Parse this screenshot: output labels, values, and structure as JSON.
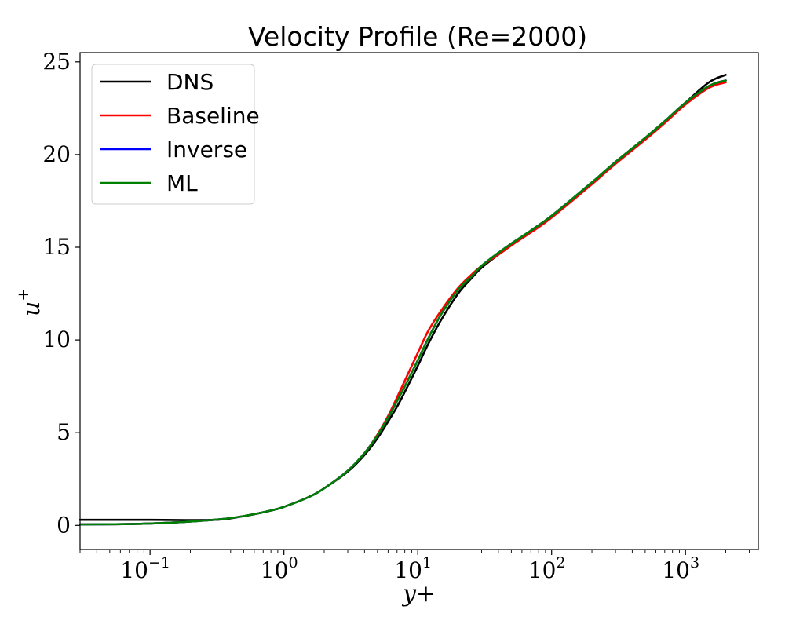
{
  "chart_data": {
    "type": "line",
    "title": "Velocity Profile (Re=2000)",
    "xlabel": "y+",
    "ylabel": "u",
    "ylabel_superscript": "+",
    "x_scale": "log",
    "xlim": [
      0.03,
      3500
    ],
    "ylim": [
      -1.3,
      25.5
    ],
    "x_ticks": [
      {
        "value": 0.1,
        "base": "10",
        "exp": "−1"
      },
      {
        "value": 1,
        "base": "10",
        "exp": "0"
      },
      {
        "value": 10,
        "base": "10",
        "exp": "1"
      },
      {
        "value": 100,
        "base": "10",
        "exp": "2"
      },
      {
        "value": 1000,
        "base": "10",
        "exp": "3"
      }
    ],
    "y_ticks": [
      0,
      5,
      10,
      15,
      20,
      25
    ],
    "grid": false,
    "legend_position": "top-left",
    "series": [
      {
        "name": "DNS",
        "color": "#000000",
        "x": [
          0.03,
          0.1,
          0.3,
          0.5,
          0.8,
          1,
          1.5,
          2,
          3,
          4,
          5,
          6,
          7,
          8,
          10,
          12,
          15,
          20,
          25,
          30,
          40,
          50,
          70,
          100,
          200,
          300,
          500,
          700,
          1000,
          1500,
          2000
        ],
        "y": [
          0.3,
          0.3,
          0.3,
          0.5,
          0.8,
          1.0,
          1.5,
          2.0,
          2.9,
          3.8,
          4.7,
          5.6,
          6.4,
          7.2,
          8.6,
          9.8,
          11.1,
          12.5,
          13.3,
          13.9,
          14.6,
          15.1,
          15.9,
          16.7,
          18.5,
          19.6,
          20.9,
          21.8,
          22.8,
          23.9,
          24.3
        ]
      },
      {
        "name": "Baseline",
        "color": "#ff0000",
        "x": [
          0.03,
          0.1,
          0.3,
          0.5,
          0.8,
          1,
          1.5,
          2,
          3,
          4,
          5,
          6,
          7,
          8,
          10,
          12,
          15,
          20,
          25,
          30,
          40,
          50,
          70,
          100,
          200,
          300,
          500,
          700,
          1000,
          1500,
          2000
        ],
        "y": [
          0.05,
          0.1,
          0.3,
          0.5,
          0.8,
          1.0,
          1.5,
          2.0,
          2.95,
          3.9,
          4.9,
          5.9,
          6.9,
          7.8,
          9.3,
          10.5,
          11.6,
          12.8,
          13.5,
          14.0,
          14.6,
          15.1,
          15.8,
          16.6,
          18.4,
          19.5,
          20.8,
          21.7,
          22.7,
          23.6,
          23.9
        ]
      },
      {
        "name": "Inverse",
        "color": "#0000ff",
        "x": [
          0.03,
          0.1,
          0.3,
          0.5,
          0.8,
          1,
          1.5,
          2,
          3,
          4,
          5,
          6,
          7,
          8,
          10,
          12,
          15,
          20,
          25,
          30,
          40,
          50,
          70,
          100,
          200,
          300,
          500,
          700,
          1000,
          1500,
          2000
        ],
        "y": [
          0.05,
          0.1,
          0.3,
          0.5,
          0.8,
          1.0,
          1.5,
          2.0,
          2.95,
          3.9,
          4.85,
          5.8,
          6.7,
          7.5,
          8.9,
          10.1,
          11.4,
          12.7,
          13.4,
          14.0,
          14.7,
          15.2,
          15.9,
          16.7,
          18.5,
          19.6,
          20.9,
          21.8,
          22.8,
          23.7,
          24.0
        ]
      },
      {
        "name": "ML",
        "color": "#008000",
        "x": [
          0.03,
          0.1,
          0.3,
          0.5,
          0.8,
          1,
          1.5,
          2,
          3,
          4,
          5,
          6,
          7,
          8,
          10,
          12,
          15,
          20,
          25,
          30,
          40,
          50,
          70,
          100,
          200,
          300,
          500,
          700,
          1000,
          1500,
          2000
        ],
        "y": [
          0.05,
          0.1,
          0.3,
          0.5,
          0.8,
          1.0,
          1.5,
          2.0,
          2.95,
          3.9,
          4.85,
          5.8,
          6.7,
          7.5,
          8.9,
          10.1,
          11.4,
          12.7,
          13.4,
          14.0,
          14.7,
          15.2,
          15.9,
          16.7,
          18.5,
          19.6,
          20.9,
          21.8,
          22.8,
          23.7,
          24.0
        ]
      }
    ]
  }
}
